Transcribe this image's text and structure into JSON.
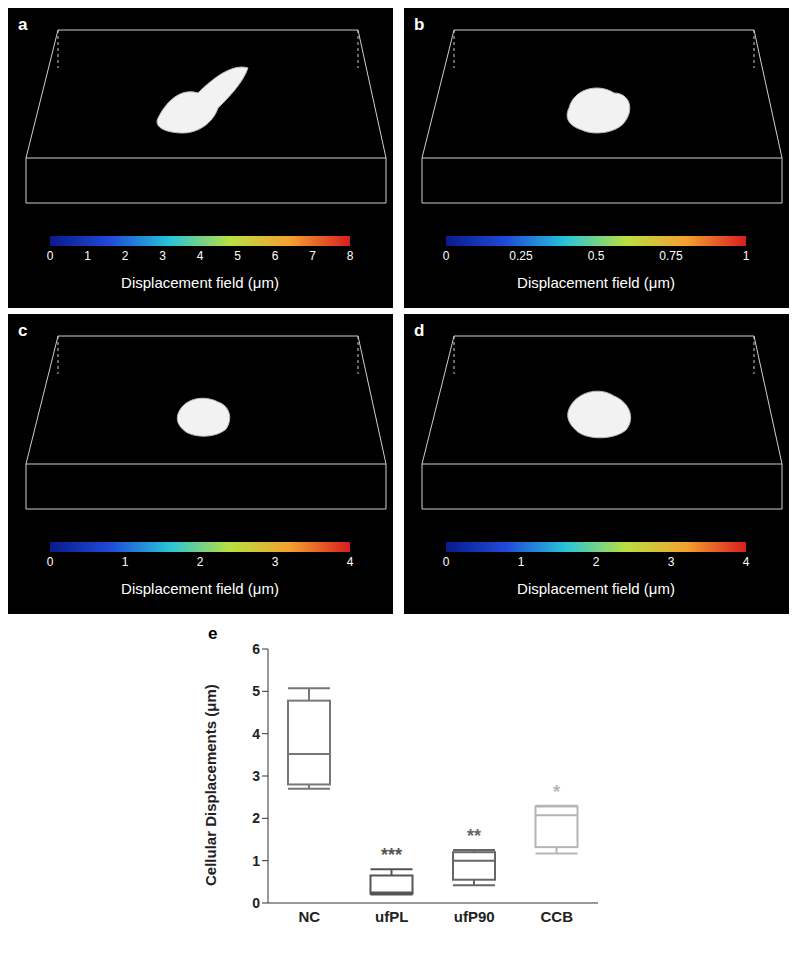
{
  "panels": [
    {
      "label": "a",
      "type": "vector_field",
      "colorbar": {
        "label": "Displacement field (μm)",
        "range": [
          0,
          8
        ],
        "ticks": [
          0,
          1,
          2,
          3,
          4,
          5,
          6,
          7,
          8
        ]
      }
    },
    {
      "label": "b",
      "type": "vector_field",
      "colorbar": {
        "label": "Displacement field (μm)",
        "range": [
          0,
          1
        ],
        "ticks": [
          0,
          0.25,
          0.5,
          0.75,
          1
        ]
      }
    },
    {
      "label": "c",
      "type": "vector_field",
      "colorbar": {
        "label": "Displacement field (μm)",
        "range": [
          0,
          4
        ],
        "ticks": [
          0,
          1,
          2,
          3,
          4
        ]
      }
    },
    {
      "label": "d",
      "type": "vector_field",
      "colorbar": {
        "label": "Displacement field (μm)",
        "range": [
          0,
          4
        ],
        "ticks": [
          0,
          1,
          2,
          3,
          4
        ]
      }
    }
  ],
  "chart_data": {
    "type": "box",
    "label": "e",
    "y_label": "Cellular Displacements (μm)",
    "categories": [
      "NC",
      "ufPL",
      "ufP90",
      "CCB"
    ],
    "stats": {
      "min": [
        2.7,
        0.2,
        0.42,
        1.17
      ],
      "q1": [
        2.8,
        0.22,
        0.55,
        1.32
      ],
      "median": [
        3.52,
        0.25,
        1.0,
        2.07
      ],
      "q3": [
        4.78,
        0.65,
        1.2,
        2.28
      ],
      "max": [
        5.07,
        0.8,
        1.25,
        2.3
      ]
    },
    "annotations": [
      null,
      "***",
      "**",
      "*"
    ],
    "colors": [
      "#777777",
      "#555555",
      "#666666",
      "#b5b5b5"
    ],
    "ylim": [
      0,
      6
    ],
    "yticks": [
      0,
      1,
      2,
      3,
      4,
      5,
      6
    ]
  }
}
